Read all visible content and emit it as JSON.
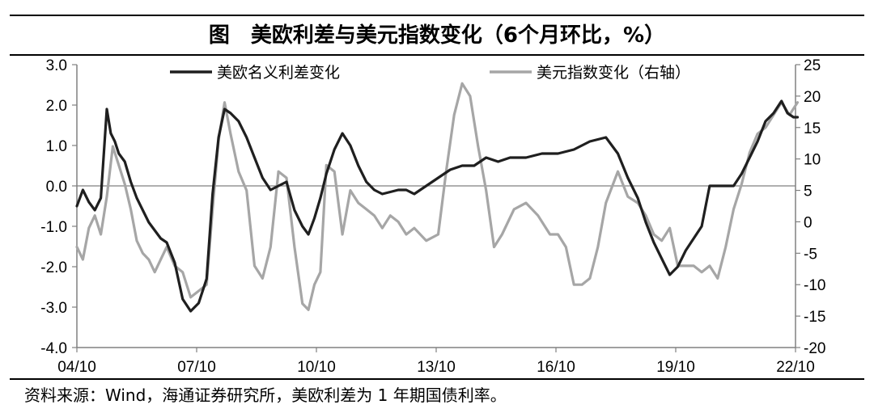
{
  "title": "图　美欧利差与美元指数变化（6个月环比，%）",
  "source": "资料来源：Wind，海通证券研究所，美欧利差为 1 年期国债利率。",
  "colors": {
    "series1": "#1f1f1f",
    "series2": "#a6a6a6",
    "axis": "#808080",
    "zero": "#808080"
  },
  "chart_data": {
    "type": "line",
    "x_tick_labels": [
      "04/10",
      "07/10",
      "10/10",
      "13/10",
      "16/10",
      "19/10",
      "22/10"
    ],
    "x_range": [
      "2004-10",
      "2022-10"
    ],
    "ylim_left": [
      -4,
      3
    ],
    "ylim_right": [
      -20,
      25
    ],
    "y_ticks_left": [
      "3.0",
      "2.0",
      "1.0",
      "0.0",
      "-1.0",
      "-2.0",
      "-3.0",
      "-4.0"
    ],
    "y_ticks_right": [
      "25",
      "20",
      "15",
      "10",
      "5",
      "0",
      "-5",
      "-10",
      "-15",
      "-20"
    ],
    "legend_position": "top",
    "series": [
      {
        "name": "美欧名义利差变化",
        "axis": "left",
        "x": [
          2004.75,
          2004.9,
          2005.05,
          2005.2,
          2005.35,
          2005.5,
          2005.6,
          2005.7,
          2005.8,
          2005.95,
          2006.1,
          2006.25,
          2006.4,
          2006.55,
          2006.7,
          2006.85,
          2007.0,
          2007.2,
          2007.4,
          2007.6,
          2007.8,
          2008.0,
          2008.15,
          2008.3,
          2008.45,
          2008.6,
          2008.8,
          2009.0,
          2009.2,
          2009.4,
          2009.6,
          2009.8,
          2010.0,
          2010.2,
          2010.4,
          2010.55,
          2010.7,
          2010.85,
          2011.0,
          2011.2,
          2011.4,
          2011.6,
          2011.8,
          2012.0,
          2012.2,
          2012.4,
          2012.6,
          2012.8,
          2013.0,
          2013.2,
          2013.5,
          2013.8,
          2014.1,
          2014.4,
          2014.7,
          2015.0,
          2015.3,
          2015.6,
          2016.0,
          2016.4,
          2016.8,
          2017.2,
          2017.6,
          2018.0,
          2018.3,
          2018.55,
          2018.8,
          2019.0,
          2019.2,
          2019.4,
          2019.6,
          2019.8,
          2020.0,
          2020.2,
          2020.4,
          2020.6,
          2020.8,
          2021.0,
          2021.2,
          2021.4,
          2021.6,
          2021.8,
          2022.0,
          2022.2,
          2022.4,
          2022.55,
          2022.7,
          2022.8
        ],
        "values": [
          -0.5,
          -0.1,
          -0.4,
          -0.6,
          -0.3,
          1.9,
          1.3,
          1.1,
          0.8,
          0.6,
          0.1,
          -0.3,
          -0.6,
          -0.9,
          -1.1,
          -1.3,
          -1.4,
          -1.9,
          -2.8,
          -3.1,
          -2.9,
          -2.3,
          -0.2,
          1.2,
          1.9,
          1.8,
          1.6,
          1.2,
          0.7,
          0.2,
          -0.1,
          0.0,
          0.1,
          -0.6,
          -1.0,
          -1.2,
          -0.8,
          -0.3,
          0.3,
          0.9,
          1.3,
          1.0,
          0.5,
          0.1,
          -0.1,
          -0.2,
          -0.15,
          -0.1,
          -0.1,
          -0.2,
          0.0,
          0.2,
          0.4,
          0.5,
          0.5,
          0.7,
          0.6,
          0.7,
          0.7,
          0.8,
          0.8,
          0.9,
          1.1,
          1.2,
          0.8,
          0.2,
          -0.3,
          -0.9,
          -1.4,
          -1.8,
          -2.2,
          -2.0,
          -1.6,
          -1.3,
          -1.0,
          0.0,
          0.0,
          0.0,
          0.0,
          0.3,
          0.7,
          1.1,
          1.6,
          1.8,
          2.1,
          1.8,
          1.7,
          1.7
        ]
      },
      {
        "name": "美元指数变化（右轴）",
        "axis": "right",
        "x": [
          2004.75,
          2004.9,
          2005.05,
          2005.2,
          2005.35,
          2005.5,
          2005.65,
          2005.8,
          2005.95,
          2006.1,
          2006.25,
          2006.4,
          2006.55,
          2006.7,
          2006.85,
          2007.0,
          2007.2,
          2007.4,
          2007.6,
          2007.8,
          2008.0,
          2008.15,
          2008.3,
          2008.45,
          2008.6,
          2008.8,
          2009.0,
          2009.2,
          2009.4,
          2009.6,
          2009.8,
          2010.0,
          2010.2,
          2010.4,
          2010.55,
          2010.7,
          2010.85,
          2011.0,
          2011.2,
          2011.4,
          2011.6,
          2011.8,
          2012.0,
          2012.2,
          2012.4,
          2012.6,
          2012.8,
          2013.0,
          2013.2,
          2013.5,
          2013.8,
          2014.0,
          2014.2,
          2014.4,
          2014.6,
          2014.8,
          2015.0,
          2015.2,
          2015.4,
          2015.7,
          2016.0,
          2016.3,
          2016.6,
          2016.8,
          2017.0,
          2017.2,
          2017.4,
          2017.6,
          2017.8,
          2018.0,
          2018.3,
          2018.55,
          2018.8,
          2019.0,
          2019.2,
          2019.4,
          2019.6,
          2019.8,
          2020.0,
          2020.2,
          2020.4,
          2020.6,
          2020.8,
          2021.0,
          2021.2,
          2021.4,
          2021.6,
          2021.8,
          2022.0,
          2022.2,
          2022.4,
          2022.6,
          2022.8
        ],
        "values": [
          -4,
          -6,
          -1,
          1,
          -2,
          4,
          12,
          9,
          6,
          2,
          -3,
          -5,
          -6,
          -8,
          -6,
          -4,
          -7,
          -8,
          -12,
          -11,
          -10,
          2,
          13,
          19,
          14,
          8,
          5,
          -7,
          -9,
          -4,
          8,
          7,
          -4,
          -13,
          -14,
          -10,
          -8,
          9,
          8,
          -2,
          5,
          3,
          2,
          1,
          -1,
          1,
          0,
          -2,
          -1,
          -3,
          -2,
          8,
          17,
          22,
          20,
          12,
          5,
          -4,
          -2,
          2,
          3,
          1,
          -2,
          -2,
          -4,
          -10,
          -10,
          -9,
          -4,
          3,
          8,
          4,
          3,
          1,
          -2,
          -3,
          -1,
          -7,
          -7,
          -7,
          -8,
          -7,
          -9,
          -4,
          2,
          6,
          11,
          14,
          15,
          17,
          19,
          17,
          19
        ]
      }
    ]
  }
}
